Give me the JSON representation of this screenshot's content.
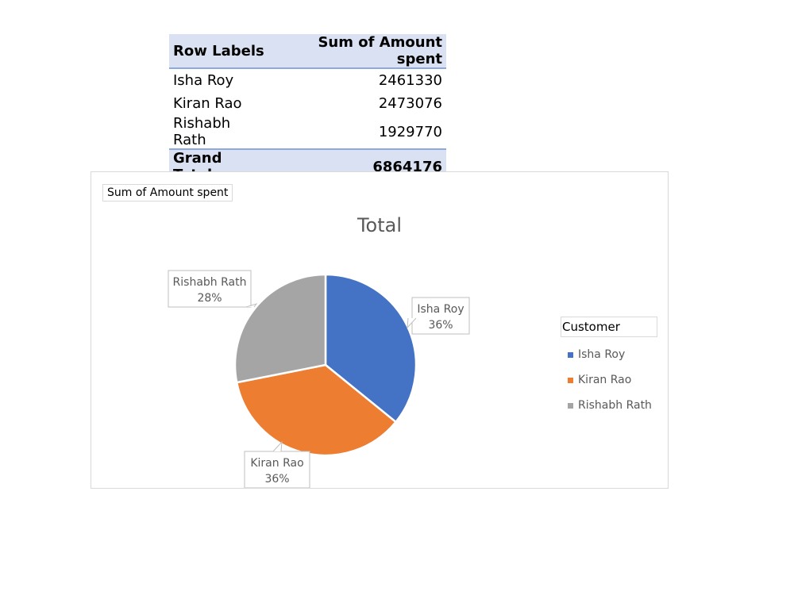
{
  "pivot": {
    "headers": [
      "Row Labels",
      "Sum of Amount spent"
    ],
    "rows": [
      {
        "label": "Isha Roy",
        "value": "2461330"
      },
      {
        "label": "Kiran Rao",
        "value": "2473076"
      },
      {
        "label": "Rishabh Rath",
        "value": "1929770"
      }
    ],
    "total": {
      "label": "Grand Total",
      "value": "6864176"
    }
  },
  "chart": {
    "field_button": "Sum of Amount spent",
    "title": "Total",
    "legend_title": "Customer"
  },
  "chart_data": {
    "type": "pie",
    "title": "Total",
    "categories": [
      "Isha Roy",
      "Kiran Rao",
      "Rishabh Rath"
    ],
    "values": [
      2461330,
      2473076,
      1929770
    ],
    "percent_labels": [
      "36%",
      "36%",
      "28%"
    ],
    "colors": [
      "#4472c4",
      "#ed7d31",
      "#a5a5a5"
    ],
    "legend_title": "Customer",
    "legend_position": "right"
  }
}
